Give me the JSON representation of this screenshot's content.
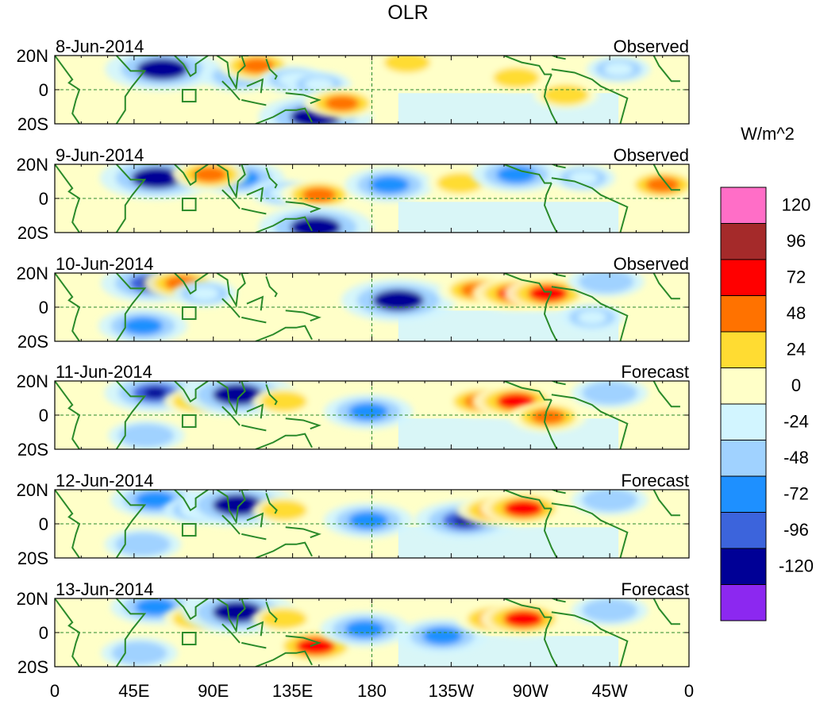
{
  "chart_data": {
    "type": "heatmap",
    "title": "OLR",
    "units_label": "W/m^2",
    "lat_ticks": [
      "20N",
      "0",
      "20S"
    ],
    "lon_ticks": [
      "0",
      "45E",
      "90E",
      "135E",
      "180",
      "135W",
      "90W",
      "45W",
      "0"
    ],
    "lon_range": [
      0,
      360
    ],
    "lat_range": [
      -20,
      20
    ],
    "panels": [
      {
        "date": "8-Jun-2014",
        "kind": "Observed"
      },
      {
        "date": "9-Jun-2014",
        "kind": "Observed"
      },
      {
        "date": "10-Jun-2014",
        "kind": "Observed"
      },
      {
        "date": "11-Jun-2014",
        "kind": "Forecast"
      },
      {
        "date": "12-Jun-2014",
        "kind": "Forecast"
      },
      {
        "date": "13-Jun-2014",
        "kind": "Forecast"
      }
    ],
    "colorbar": {
      "labels": [
        "120",
        "96",
        "72",
        "48",
        "24",
        "0",
        "-24",
        "-48",
        "-72",
        "-96",
        "-120"
      ],
      "colors": [
        "#ff6ec7",
        "#a52a2a",
        "#ff0000",
        "#ff7200",
        "#ffdc32",
        "#ffffc8",
        "#d2f5ff",
        "#a0d2ff",
        "#1e90ff",
        "#3c64dc",
        "#000096",
        "#8c28f0"
      ]
    },
    "anomalies": [
      [
        {
          "lon": 61,
          "lat": 12,
          "v": -120
        },
        {
          "lon": 105,
          "lat": 8,
          "v": -48
        },
        {
          "lon": 115,
          "lat": 14,
          "v": 48
        },
        {
          "lon": 135,
          "lat": 6,
          "v": -24
        },
        {
          "lon": 148,
          "lat": -16,
          "v": -120
        },
        {
          "lon": 150,
          "lat": 3,
          "v": -24
        },
        {
          "lon": 163,
          "lat": -8,
          "v": 48
        },
        {
          "lon": 200,
          "lat": 16,
          "v": 24
        },
        {
          "lon": 262,
          "lat": 7,
          "v": 24
        },
        {
          "lon": 290,
          "lat": -3,
          "v": 24
        },
        {
          "lon": 320,
          "lat": 12,
          "v": -24
        }
      ],
      [
        {
          "lon": 58,
          "lat": 12,
          "v": -120
        },
        {
          "lon": 105,
          "lat": 12,
          "v": -72
        },
        {
          "lon": 88,
          "lat": 14,
          "v": 48
        },
        {
          "lon": 130,
          "lat": 3,
          "v": -24
        },
        {
          "lon": 150,
          "lat": 2,
          "v": 48
        },
        {
          "lon": 148,
          "lat": -17,
          "v": -120
        },
        {
          "lon": 190,
          "lat": 8,
          "v": -72
        },
        {
          "lon": 230,
          "lat": 9,
          "v": 24
        },
        {
          "lon": 262,
          "lat": 14,
          "v": -72
        },
        {
          "lon": 300,
          "lat": 12,
          "v": -24
        },
        {
          "lon": 345,
          "lat": 8,
          "v": 48
        }
      ],
      [
        {
          "lon": 55,
          "lat": 14,
          "v": -96
        },
        {
          "lon": 72,
          "lat": 14,
          "v": 48
        },
        {
          "lon": 85,
          "lat": 8,
          "v": -24
        },
        {
          "lon": 50,
          "lat": -11,
          "v": -72
        },
        {
          "lon": 195,
          "lat": 4,
          "v": -120
        },
        {
          "lon": 240,
          "lat": 10,
          "v": 48
        },
        {
          "lon": 262,
          "lat": 8,
          "v": 72
        },
        {
          "lon": 280,
          "lat": 8,
          "v": 72
        },
        {
          "lon": 305,
          "lat": -6,
          "v": -24
        },
        {
          "lon": 313,
          "lat": 15,
          "v": -48
        }
      ],
      [
        {
          "lon": 57,
          "lat": 13,
          "v": -96
        },
        {
          "lon": 80,
          "lat": 8,
          "v": 24
        },
        {
          "lon": 104,
          "lat": 12,
          "v": -120
        },
        {
          "lon": 130,
          "lat": 8,
          "v": 24
        },
        {
          "lon": 52,
          "lat": -12,
          "v": -48
        },
        {
          "lon": 178,
          "lat": 2,
          "v": -72
        },
        {
          "lon": 242,
          "lat": 8,
          "v": 48
        },
        {
          "lon": 262,
          "lat": 8,
          "v": 72
        },
        {
          "lon": 280,
          "lat": -1,
          "v": 48
        },
        {
          "lon": 315,
          "lat": 13,
          "v": -48
        }
      ],
      [
        {
          "lon": 57,
          "lat": 14,
          "v": -72
        },
        {
          "lon": 80,
          "lat": 8,
          "v": -24
        },
        {
          "lon": 104,
          "lat": 11,
          "v": -120
        },
        {
          "lon": 130,
          "lat": 8,
          "v": 24
        },
        {
          "lon": 50,
          "lat": -12,
          "v": -48
        },
        {
          "lon": 178,
          "lat": 2,
          "v": -72
        },
        {
          "lon": 233,
          "lat": 2,
          "v": -96
        },
        {
          "lon": 250,
          "lat": 8,
          "v": 48
        },
        {
          "lon": 266,
          "lat": 9,
          "v": 72
        },
        {
          "lon": 315,
          "lat": 14,
          "v": -48
        }
      ],
      [
        {
          "lon": 57,
          "lat": 15,
          "v": -72
        },
        {
          "lon": 80,
          "lat": 8,
          "v": 24
        },
        {
          "lon": 104,
          "lat": 12,
          "v": -120
        },
        {
          "lon": 130,
          "lat": 8,
          "v": 24
        },
        {
          "lon": 48,
          "lat": -12,
          "v": -48
        },
        {
          "lon": 148,
          "lat": -8,
          "v": 72
        },
        {
          "lon": 176,
          "lat": 2,
          "v": -72
        },
        {
          "lon": 220,
          "lat": -2,
          "v": -72
        },
        {
          "lon": 250,
          "lat": 8,
          "v": 48
        },
        {
          "lon": 266,
          "lat": 8,
          "v": 72
        },
        {
          "lon": 315,
          "lat": 13,
          "v": -48
        }
      ]
    ],
    "grid": "dashed zero-latitude and 180 meridian reference lines"
  }
}
